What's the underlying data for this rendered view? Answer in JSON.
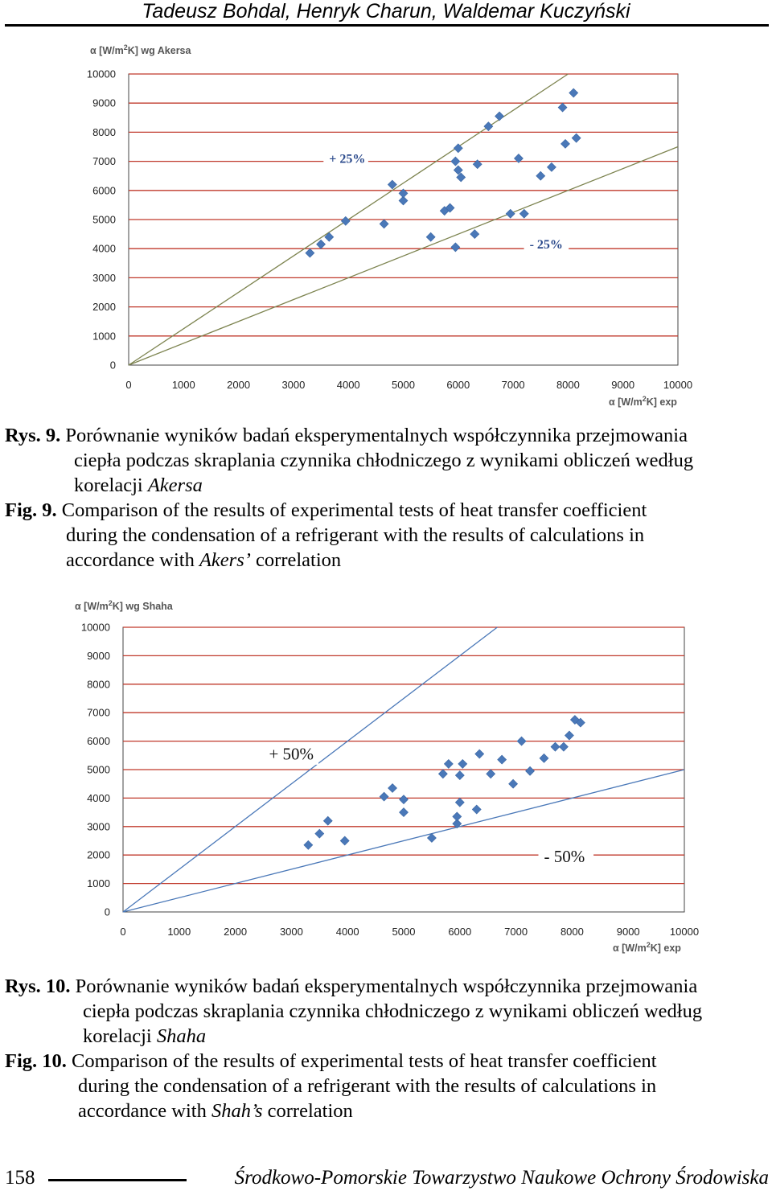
{
  "header": {
    "authors": "Tadeusz Bohdal, Henryk Charun, Waldemar Kuczyński"
  },
  "chart_data": [
    {
      "type": "scatter",
      "ylabel_prefix": "α [W/m",
      "ylabel_sup": "2",
      "ylabel_suffix": "K] wg Akersa",
      "xlabel_prefix": "α [W/m",
      "xlabel_sup": "2",
      "xlabel_suffix": "K] exp",
      "xlim": [
        0,
        10000
      ],
      "ylim": [
        0,
        10000
      ],
      "xticks": [
        "0",
        "1000",
        "2000",
        "3000",
        "4000",
        "5000",
        "6000",
        "7000",
        "8000",
        "9000",
        "10000"
      ],
      "yticks": [
        "0",
        "1000",
        "2000",
        "3000",
        "4000",
        "5000",
        "6000",
        "7000",
        "8000",
        "9000",
        "10000"
      ],
      "grid": "horizontal",
      "grid_color": "#c0392b",
      "marker_color": "#4a78b8",
      "line_color": "#7d8450",
      "lines": [
        {
          "label": "+ 25%",
          "slope": 1.25
        },
        {
          "label": "- 25%",
          "slope": 0.75
        }
      ],
      "annotations": [
        {
          "text": "+ 25%",
          "x": 3650,
          "y": 6950
        },
        {
          "text": "- 25%",
          "x": 7300,
          "y": 4000
        }
      ],
      "points": [
        [
          3300,
          3850
        ],
        [
          3500,
          4150
        ],
        [
          3650,
          4400
        ],
        [
          3950,
          4950
        ],
        [
          4800,
          6200
        ],
        [
          4650,
          4850
        ],
        [
          5000,
          5650
        ],
        [
          5000,
          5900
        ],
        [
          5500,
          4400
        ],
        [
          5750,
          5300
        ],
        [
          5850,
          5400
        ],
        [
          5950,
          4050
        ],
        [
          5950,
          7000
        ],
        [
          6000,
          7450
        ],
        [
          6000,
          6700
        ],
        [
          6050,
          6450
        ],
        [
          6300,
          4500
        ],
        [
          6350,
          6900
        ],
        [
          6550,
          8200
        ],
        [
          6750,
          8550
        ],
        [
          6950,
          5200
        ],
        [
          7100,
          7100
        ],
        [
          7200,
          5200
        ],
        [
          7500,
          6500
        ],
        [
          7700,
          6800
        ],
        [
          7900,
          8850
        ],
        [
          7950,
          7600
        ],
        [
          8100,
          9350
        ],
        [
          8150,
          7800
        ]
      ]
    },
    {
      "type": "scatter",
      "ylabel_prefix": "α [W/m",
      "ylabel_sup": "2",
      "ylabel_suffix": "K] wg Shaha",
      "xlabel_prefix": "α [W/m",
      "xlabel_sup": "2",
      "xlabel_suffix": "K] exp",
      "xlim": [
        0,
        10000
      ],
      "ylim": [
        0,
        10000
      ],
      "xticks": [
        "0",
        "1000",
        "2000",
        "3000",
        "4000",
        "5000",
        "6000",
        "7000",
        "8000",
        "9000",
        "10000"
      ],
      "yticks": [
        "0",
        "1000",
        "2000",
        "3000",
        "4000",
        "5000",
        "6000",
        "7000",
        "8000",
        "9000",
        "10000"
      ],
      "grid": "horizontal",
      "grid_color": "#c0392b",
      "marker_color": "#4a78b8",
      "line_color": "#4a78b8",
      "lines": [
        {
          "label": "+ 50%",
          "slope": 1.5
        },
        {
          "label": "- 50%",
          "slope": 0.5
        }
      ],
      "annotations": [
        {
          "text": "+ 50%",
          "x": 2600,
          "y": 5350
        },
        {
          "text": "- 50%",
          "x": 7500,
          "y": 1750
        }
      ],
      "points": [
        [
          3300,
          2350
        ],
        [
          3500,
          2750
        ],
        [
          3650,
          3200
        ],
        [
          3950,
          2500
        ],
        [
          4650,
          4050
        ],
        [
          4800,
          4350
        ],
        [
          5000,
          3500
        ],
        [
          5000,
          3950
        ],
        [
          5500,
          2600
        ],
        [
          5700,
          4850
        ],
        [
          5800,
          5200
        ],
        [
          5950,
          3100
        ],
        [
          5950,
          3350
        ],
        [
          6000,
          3850
        ],
        [
          6000,
          4800
        ],
        [
          6050,
          5200
        ],
        [
          6300,
          3600
        ],
        [
          6350,
          5550
        ],
        [
          6550,
          4850
        ],
        [
          6750,
          5350
        ],
        [
          6950,
          4500
        ],
        [
          7100,
          6000
        ],
        [
          7250,
          4950
        ],
        [
          7500,
          5400
        ],
        [
          7700,
          5800
        ],
        [
          7850,
          5800
        ],
        [
          7950,
          6200
        ],
        [
          8050,
          6750
        ],
        [
          8150,
          6650
        ]
      ]
    }
  ],
  "captions": [
    {
      "rys_label": "Rys. 9.",
      "rys_line1": "Porównanie wyników badań eksperymentalnych współczynnika przejmowania",
      "rys_line2": "ciepła podczas skraplania czynnika chłodniczego z wynikami obliczeń według",
      "rys_line3_pre": "korelacji ",
      "rys_line3_it": "Akersa",
      "fig_label": "Fig. 9.",
      "fig_line1": "Comparison of the results of experimental tests of heat transfer coefficient",
      "fig_line2": "during the condensation of a refrigerant with the results of calculations in",
      "fig_line3_pre": "accordance with ",
      "fig_line3_it": "Akers’",
      "fig_line3_post": " correlation"
    },
    {
      "rys_label": "Rys. 10.",
      "rys_line1": "Porównanie wyników badań eksperymentalnych współczynnika przejmowania",
      "rys_line2": "ciepła podczas skraplania czynnika chłodniczego z wynikami obliczeń według",
      "rys_line3_pre": "korelacji ",
      "rys_line3_it": "Shaha",
      "fig_label": "Fig. 10.",
      "fig_line1": "Comparison of the results of experimental tests of heat transfer coefficient",
      "fig_line2": "during the condensation of a refrigerant with the results of calculations in",
      "fig_line3_pre": "accordance with ",
      "fig_line3_it": "Shah’s",
      "fig_line3_post": " correlation"
    }
  ],
  "footer": {
    "page_number": "158",
    "journal": "Środkowo-Pomorskie Towarzystwo Naukowe Ochrony Środowiska"
  }
}
